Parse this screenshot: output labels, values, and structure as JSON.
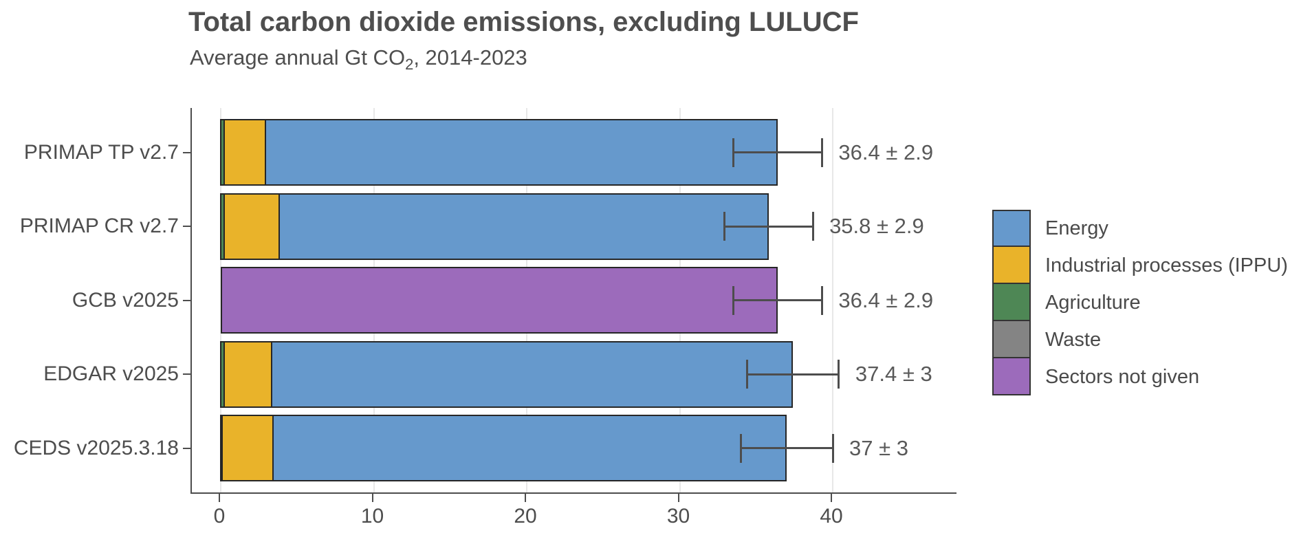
{
  "chart_data": {
    "type": "bar",
    "orientation": "horizontal-stacked",
    "title": "Total carbon dioxide emissions, excluding LULUCF",
    "subtitle": {
      "pre": "Average annual Gt CO",
      "sub": "2",
      "post": ", 2014-2023"
    },
    "categories": [
      "PRIMAP TP v2.7",
      "PRIMAP CR v2.7",
      "GCB v2025",
      "EDGAR v2025",
      "CEDS v2025.3.18"
    ],
    "series": [
      {
        "name": "Waste",
        "color": "#848484",
        "values": [
          0.05,
          0.05,
          0,
          0.05,
          0.05
        ]
      },
      {
        "name": "Agriculture",
        "color": "#4e8755",
        "values": [
          0.2,
          0.2,
          0,
          0.2,
          0.1
        ]
      },
      {
        "name": "Industrial processes (IPPU)",
        "color": "#e9b32a",
        "values": [
          2.7,
          3.6,
          0,
          3.1,
          3.3
        ]
      },
      {
        "name": "Energy",
        "color": "#6699cc",
        "values": [
          33.45,
          31.95,
          0,
          34.05,
          33.55
        ]
      },
      {
        "name": "Sectors not given",
        "color": "#9c6bbb",
        "values": [
          0,
          0,
          36.4,
          0,
          0
        ]
      }
    ],
    "totals": [
      36.4,
      35.8,
      36.4,
      37.4,
      37
    ],
    "errors": [
      2.9,
      2.9,
      2.9,
      3,
      3
    ],
    "value_labels": [
      "36.4 ± 2.9",
      "35.8 ± 2.9",
      "36.4 ± 2.9",
      "37.4 ± 3",
      "37 ± 3"
    ],
    "x_ticks": [
      0,
      10,
      20,
      30,
      40
    ],
    "x_tick_labels": [
      "0",
      "10",
      "20",
      "30",
      "40"
    ],
    "xlim": [
      -2,
      48
    ],
    "grid": "vertical major gridlines only",
    "legend": {
      "position": "right",
      "items": [
        {
          "label": "Energy",
          "color": "#6699cc"
        },
        {
          "label": "Industrial processes (IPPU)",
          "color": "#e9b32a"
        },
        {
          "label": "Agriculture",
          "color": "#4e8755"
        },
        {
          "label": "Waste",
          "color": "#848484"
        },
        {
          "label": "Sectors not given",
          "color": "#9c6bbb"
        }
      ]
    },
    "colors": {
      "axis": "#4d4d4d",
      "gridline": "#e8e8e8",
      "bar_border": "#262626",
      "error_bar": "#4d4d4d",
      "title_text": "#4e4e4e",
      "axis_text": "#4d4d4d",
      "value_text": "#595959"
    }
  }
}
